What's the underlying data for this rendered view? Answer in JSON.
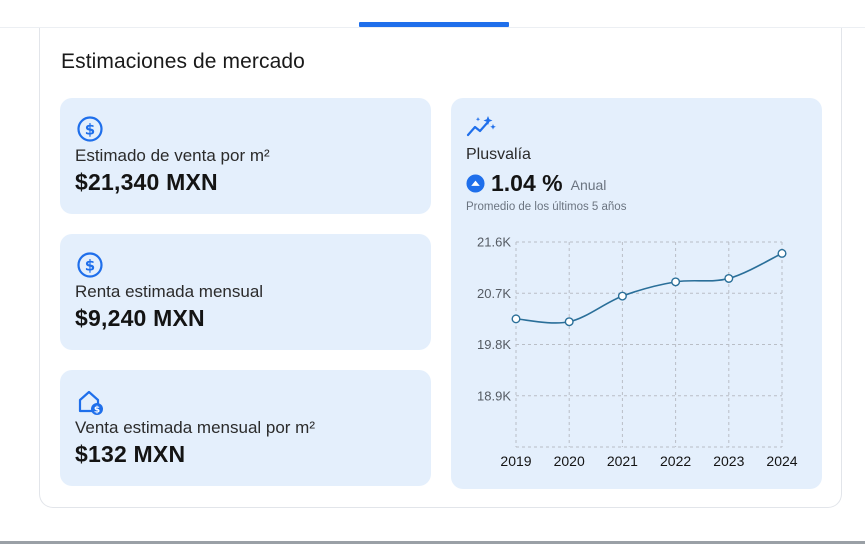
{
  "section_title": "Estimaciones de mercado",
  "stats": [
    {
      "icon": "dollar-circle-icon",
      "label": "Estimado de venta por m²",
      "value": "$21,340 MXN"
    },
    {
      "icon": "dollar-circle-icon",
      "label": "Renta estimada mensual",
      "value": "$9,240 MXN"
    },
    {
      "icon": "house-dollar-icon",
      "label": "Venta estimada mensual por m²",
      "value": "$132 MXN"
    }
  ],
  "plusvalia": {
    "icon": "sparkle-trend-icon",
    "title": "Plusvalía",
    "rate_icon": "arrow-up-circle-icon",
    "rate": "1.04 %",
    "period": "Anual",
    "note": "Promedio de los últimos 5 años"
  },
  "colors": {
    "accent": "#1f6feb",
    "card_bg": "#e4effc",
    "line": "#2a6f99"
  },
  "chart_data": {
    "type": "line",
    "x": [
      "2019",
      "2020",
      "2021",
      "2022",
      "2023",
      "2024"
    ],
    "series": [
      {
        "values": [
          20250,
          20200,
          20650,
          20900,
          20960,
          21400
        ]
      }
    ],
    "y_ticks": [
      "21.6K",
      "20.7K",
      "19.8K",
      "18.9K"
    ],
    "y_tick_values": [
      21600,
      20700,
      19800,
      18900
    ],
    "ylim": [
      18000,
      21600
    ],
    "grid": true,
    "title": "",
    "xlabel": "",
    "ylabel": ""
  }
}
